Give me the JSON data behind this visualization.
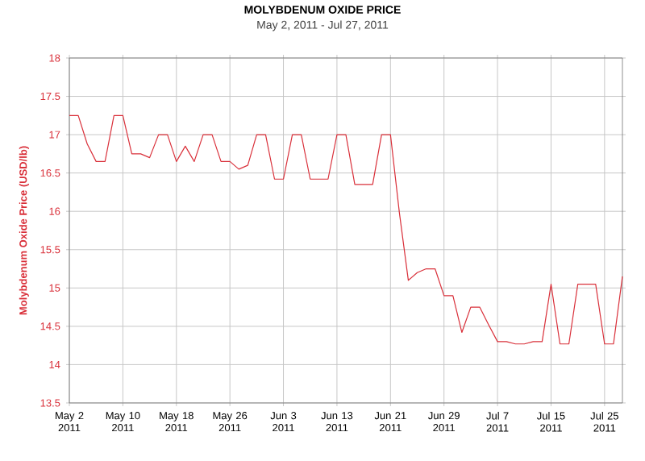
{
  "chart_data": {
    "type": "line",
    "title": "MOLYBDENUM OXIDE PRICE",
    "subtitle": "May 2, 2011 - Jul 27, 2011",
    "ylabel": "Molybdenum Oxide Price (USD/lb)",
    "categories": [
      "May 2 2011",
      null,
      null,
      null,
      null,
      null,
      "May 10 2011",
      null,
      null,
      null,
      null,
      null,
      "May 18 2011",
      null,
      null,
      null,
      null,
      null,
      "May 26 2011",
      null,
      null,
      null,
      null,
      null,
      "Jun 3 2011",
      null,
      null,
      null,
      null,
      null,
      "Jun 13 2011",
      null,
      null,
      null,
      null,
      null,
      "Jun 21 2011",
      null,
      null,
      null,
      null,
      null,
      "Jun 29 2011",
      null,
      null,
      null,
      null,
      null,
      "Jul 7 2011",
      null,
      null,
      null,
      null,
      null,
      "Jul 15 2011",
      null,
      null,
      null,
      null,
      null,
      "Jul 25 2011",
      null,
      null
    ],
    "series": [
      {
        "color": "#d9303a",
        "values": [
          17.25,
          17.25,
          16.88,
          16.65,
          16.65,
          17.25,
          17.25,
          16.75,
          16.75,
          16.7,
          17.0,
          17.0,
          16.65,
          16.85,
          16.65,
          17.0,
          17.0,
          16.65,
          16.65,
          16.55,
          16.6,
          17.0,
          17.0,
          16.42,
          16.42,
          17.0,
          17.0,
          16.42,
          16.42,
          16.42,
          17.0,
          17.0,
          16.35,
          16.35,
          16.35,
          17.0,
          17.0,
          15.98,
          15.1,
          15.2,
          15.25,
          15.25,
          14.9,
          14.9,
          14.42,
          14.75,
          14.75,
          14.52,
          14.3,
          14.3,
          14.27,
          14.27,
          14.3,
          14.3,
          15.05,
          14.27,
          14.27,
          15.05,
          15.05,
          15.05,
          14.27,
          14.27,
          15.15
        ]
      }
    ],
    "ylim": [
      13.5,
      18
    ],
    "yticks": [
      13.5,
      14,
      14.5,
      15,
      15.5,
      16,
      16.5,
      17,
      17.5,
      18
    ],
    "grid": true,
    "marker": "none",
    "line_style": "solid"
  }
}
